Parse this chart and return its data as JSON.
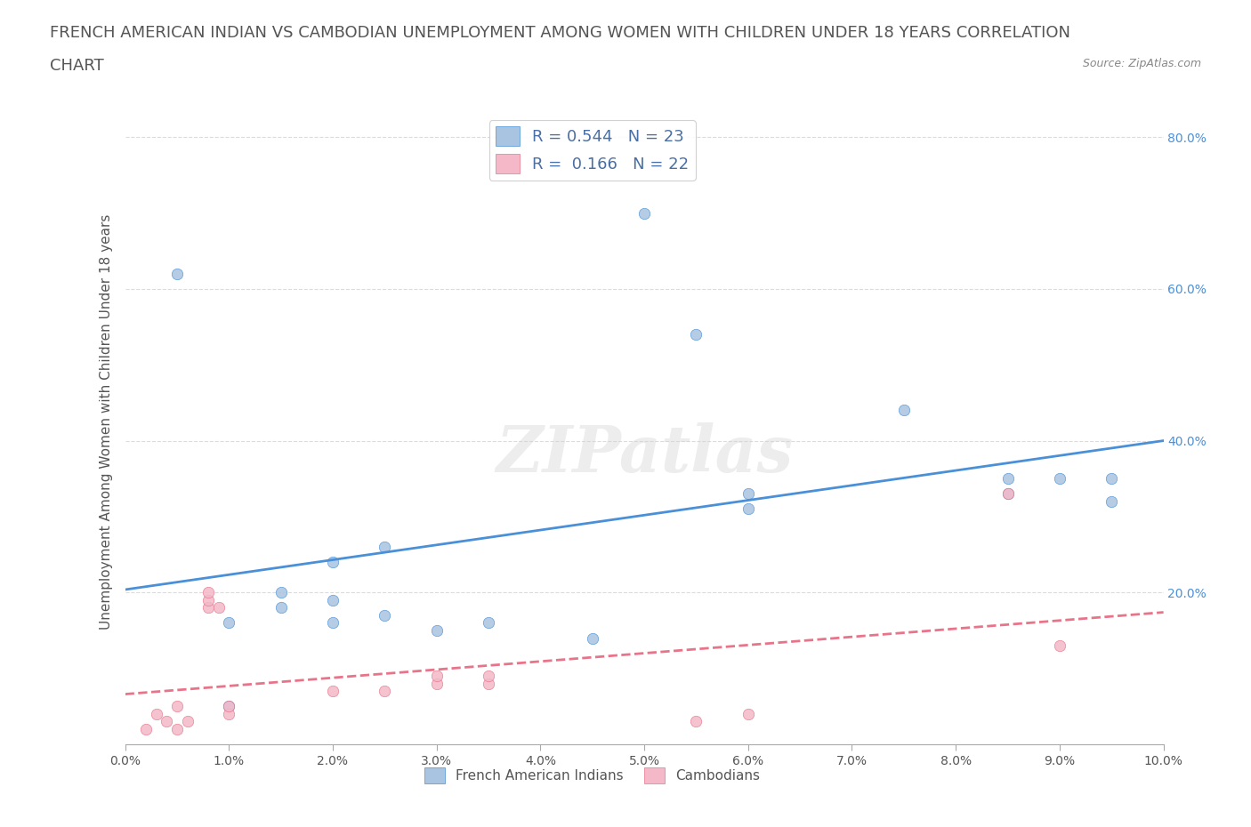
{
  "title_line1": "FRENCH AMERICAN INDIAN VS CAMBODIAN UNEMPLOYMENT AMONG WOMEN WITH CHILDREN UNDER 18 YEARS CORRELATION",
  "title_line2": "CHART",
  "source_text": "Source: ZipAtlas.com",
  "ylabel": "Unemployment Among Women with Children Under 18 years",
  "watermark": "ZIPatlas",
  "french_american_indian_points": [
    [
      0.5,
      0.62
    ],
    [
      1.0,
      0.05
    ],
    [
      1.0,
      0.16
    ],
    [
      1.5,
      0.18
    ],
    [
      1.5,
      0.2
    ],
    [
      2.0,
      0.16
    ],
    [
      2.0,
      0.19
    ],
    [
      2.0,
      0.24
    ],
    [
      2.5,
      0.17
    ],
    [
      2.5,
      0.26
    ],
    [
      3.0,
      0.15
    ],
    [
      3.5,
      0.16
    ],
    [
      4.5,
      0.14
    ],
    [
      5.0,
      0.7
    ],
    [
      5.5,
      0.54
    ],
    [
      6.0,
      0.33
    ],
    [
      6.0,
      0.31
    ],
    [
      7.5,
      0.44
    ],
    [
      8.5,
      0.35
    ],
    [
      8.5,
      0.33
    ],
    [
      9.0,
      0.35
    ],
    [
      9.5,
      0.35
    ],
    [
      9.5,
      0.32
    ]
  ],
  "cambodian_points": [
    [
      0.2,
      0.02
    ],
    [
      0.3,
      0.04
    ],
    [
      0.4,
      0.03
    ],
    [
      0.5,
      0.02
    ],
    [
      0.5,
      0.05
    ],
    [
      0.6,
      0.03
    ],
    [
      0.8,
      0.18
    ],
    [
      0.8,
      0.19
    ],
    [
      0.8,
      0.2
    ],
    [
      0.9,
      0.18
    ],
    [
      1.0,
      0.04
    ],
    [
      1.0,
      0.05
    ],
    [
      2.0,
      0.07
    ],
    [
      2.5,
      0.07
    ],
    [
      3.0,
      0.08
    ],
    [
      3.0,
      0.09
    ],
    [
      3.5,
      0.08
    ],
    [
      3.5,
      0.09
    ],
    [
      5.5,
      0.03
    ],
    [
      6.0,
      0.04
    ],
    [
      8.5,
      0.33
    ],
    [
      9.0,
      0.13
    ]
  ],
  "R_fai": 0.544,
  "N_fai": 23,
  "R_cam": 0.166,
  "N_cam": 22,
  "color_fai": "#a8c4e0",
  "color_cam": "#f4b8c8",
  "line_color_fai": "#4a90d9",
  "line_color_cam": "#e8748a",
  "legend_text_color": "#4a6fa5",
  "ylim_left": [
    0.0,
    0.85
  ],
  "xlim": [
    0.0,
    10.0
  ],
  "background_color": "#ffffff",
  "grid_color": "#cccccc",
  "title_fontsize": 13,
  "label_fontsize": 11,
  "tick_fontsize": 10
}
